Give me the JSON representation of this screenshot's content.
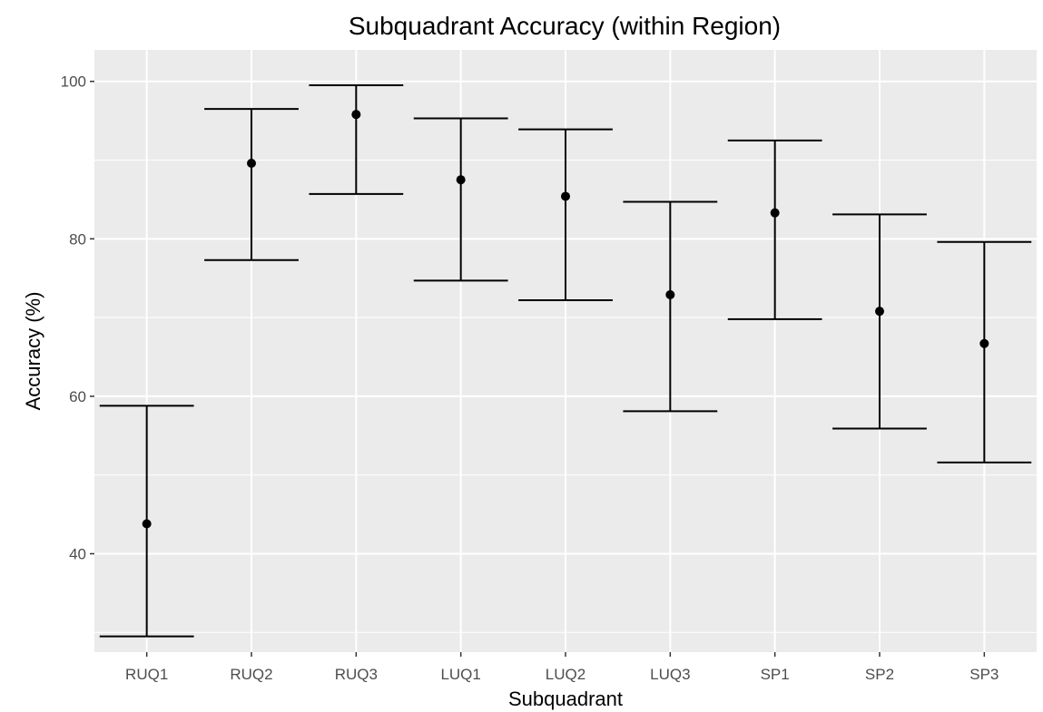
{
  "chart_data": {
    "type": "errorbar",
    "title": "Subquadrant Accuracy (within Region)",
    "xlabel": "Subquadrant",
    "ylabel": "Accuracy (%)",
    "ylim": [
      27.5,
      104
    ],
    "yticks": [
      40,
      60,
      80,
      100
    ],
    "grid": true,
    "categories": [
      "RUQ1",
      "RUQ2",
      "RUQ3",
      "LUQ1",
      "LUQ2",
      "LUQ3",
      "SP1",
      "SP2",
      "SP3"
    ],
    "values": [
      43.8,
      89.6,
      95.8,
      87.5,
      85.4,
      72.9,
      83.3,
      70.8,
      66.7
    ],
    "lower": [
      29.5,
      77.3,
      85.7,
      74.7,
      72.2,
      58.1,
      69.8,
      55.9,
      51.6
    ],
    "upper": [
      58.8,
      96.5,
      99.5,
      95.3,
      93.9,
      84.7,
      92.5,
      83.1,
      79.6
    ],
    "colors": {
      "panel": "#ebebeb",
      "grid": "#ffffff",
      "mark": "#000000"
    }
  }
}
